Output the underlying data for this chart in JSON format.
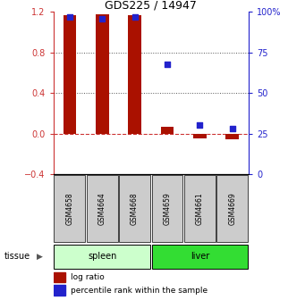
{
  "title": "GDS225 / 14947",
  "samples": [
    "GSM4658",
    "GSM4664",
    "GSM4668",
    "GSM4659",
    "GSM4661",
    "GSM4669"
  ],
  "log_ratio": [
    1.17,
    1.18,
    1.17,
    0.07,
    -0.05,
    -0.06
  ],
  "percentile_rank": [
    97,
    96,
    97,
    68,
    30,
    28
  ],
  "bar_color": "#aa1100",
  "dot_color": "#2222cc",
  "ylim_left": [
    -0.4,
    1.2
  ],
  "ylim_right": [
    0,
    100
  ],
  "yticks_left": [
    -0.4,
    0,
    0.4,
    0.8,
    1.2
  ],
  "yticks_right": [
    0,
    25,
    50,
    75,
    100
  ],
  "yticklabels_right": [
    "0",
    "25",
    "50",
    "75",
    "100%"
  ],
  "zero_line_color": "#cc3333",
  "grid_color": "#555555",
  "background_color": "#ffffff",
  "spleen_color": "#ccffcc",
  "liver_color": "#33dd33",
  "tissue_label": "tissue",
  "legend_log_ratio": "log ratio",
  "legend_percentile": "percentile rank within the sample",
  "left_tick_color": "#cc3333",
  "right_tick_color": "#2222cc"
}
